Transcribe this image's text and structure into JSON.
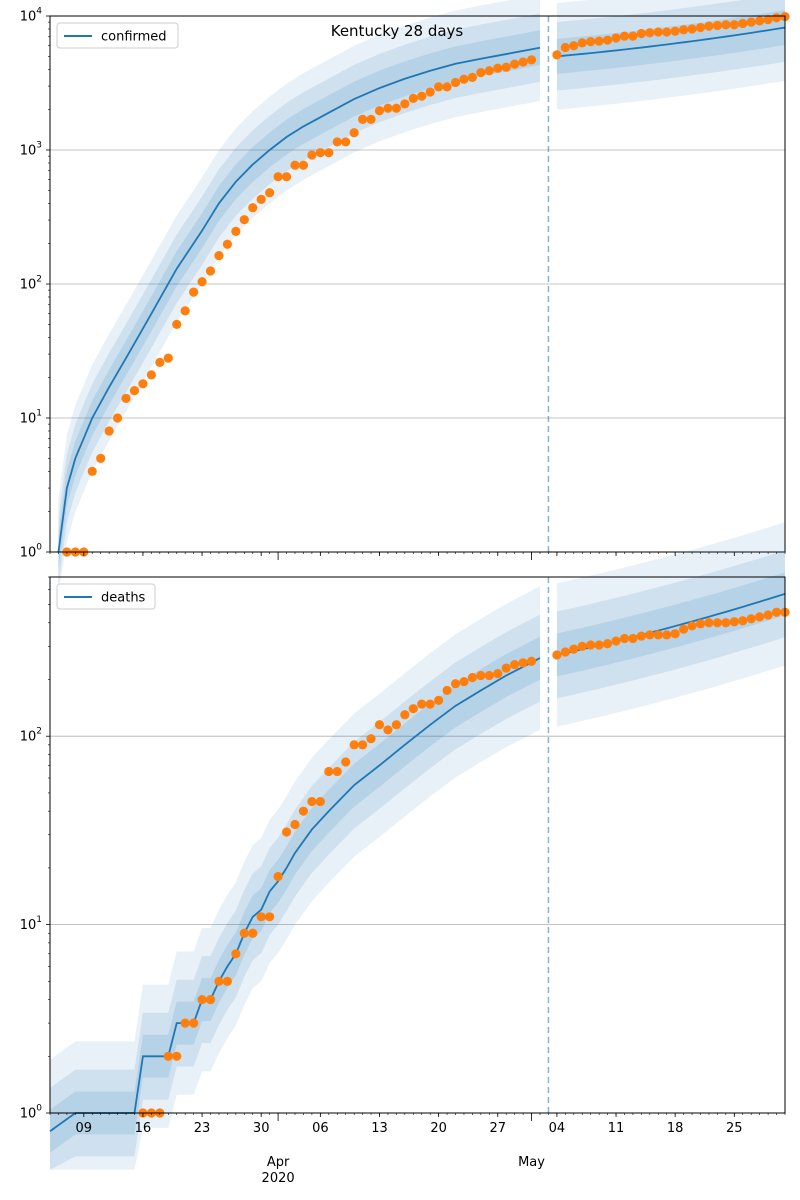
{
  "figure": {
    "title": "Kentucky 28 days",
    "colors": {
      "line": "#1f77b4",
      "points": "#ff7f0e",
      "band": "#1f77b4",
      "grid": "#b0b0b0"
    },
    "xaxis": {
      "start": "2020-03-05",
      "end": "2020-05-31",
      "minor_tick_labels": [
        {
          "date": "2020-03-09",
          "label": "09"
        },
        {
          "date": "2020-03-16",
          "label": "16"
        },
        {
          "date": "2020-03-23",
          "label": "23"
        },
        {
          "date": "2020-03-30",
          "label": "30"
        },
        {
          "date": "2020-04-06",
          "label": "06"
        },
        {
          "date": "2020-04-13",
          "label": "13"
        },
        {
          "date": "2020-04-20",
          "label": "20"
        },
        {
          "date": "2020-04-27",
          "label": "27"
        },
        {
          "date": "2020-05-04",
          "label": "04"
        },
        {
          "date": "2020-05-11",
          "label": "11"
        },
        {
          "date": "2020-05-18",
          "label": "18"
        },
        {
          "date": "2020-05-25",
          "label": "25"
        }
      ],
      "major_tick_labels": [
        {
          "date": "2020-04-01",
          "label": "Apr",
          "sublabel": "2020"
        },
        {
          "date": "2020-05-01",
          "label": "May",
          "sublabel": ""
        }
      ]
    },
    "forecast_start": "2020-05-03"
  },
  "chart_data": [
    {
      "type": "line",
      "legend": "confirmed",
      "legend_position": "top-left",
      "yscale": "log",
      "ylim": [
        1,
        10000
      ],
      "yticks": [
        {
          "value": 1,
          "base": "10",
          "exp": "0"
        },
        {
          "value": 10,
          "base": "10",
          "exp": "1"
        },
        {
          "value": 100,
          "base": "10",
          "exp": "2"
        },
        {
          "value": 1000,
          "base": "10",
          "exp": "3"
        },
        {
          "value": 10000,
          "base": "10",
          "exp": "4"
        }
      ],
      "grid": true,
      "x": [
        "2020-03-06",
        "2020-03-07",
        "2020-03-08",
        "2020-03-10",
        "2020-03-12",
        "2020-03-14",
        "2020-03-17",
        "2020-03-20",
        "2020-03-23",
        "2020-03-25",
        "2020-03-27",
        "2020-03-29",
        "2020-03-31",
        "2020-04-02",
        "2020-04-04",
        "2020-04-07",
        "2020-04-10",
        "2020-04-13",
        "2020-04-16",
        "2020-04-19",
        "2020-04-22",
        "2020-04-25",
        "2020-04-28",
        "2020-05-02"
      ],
      "model": [
        1,
        3,
        5,
        10,
        17,
        28,
        60,
        130,
        250,
        400,
        580,
        780,
        1000,
        1250,
        1500,
        1900,
        2400,
        2900,
        3400,
        3900,
        4400,
        4800,
        5200,
        5800
      ],
      "model_forecast": {
        "x": [
          "2020-05-04",
          "2020-05-31"
        ],
        "values": [
          5000,
          8200
        ]
      },
      "band_multipliers": [
        2.5,
        1.8,
        1.35
      ],
      "observed": {
        "x": [
          "2020-03-07",
          "2020-03-08",
          "2020-03-09",
          "2020-03-10",
          "2020-03-11",
          "2020-03-12",
          "2020-03-13",
          "2020-03-14",
          "2020-03-15",
          "2020-03-16",
          "2020-03-17",
          "2020-03-18",
          "2020-03-19",
          "2020-03-20",
          "2020-03-21",
          "2020-03-22",
          "2020-03-23",
          "2020-03-24",
          "2020-03-25",
          "2020-03-26",
          "2020-03-27",
          "2020-03-28",
          "2020-03-29",
          "2020-03-30",
          "2020-03-31",
          "2020-04-01",
          "2020-04-02",
          "2020-04-03",
          "2020-04-04",
          "2020-04-05",
          "2020-04-06",
          "2020-04-07",
          "2020-04-08",
          "2020-04-09",
          "2020-04-10",
          "2020-04-11",
          "2020-04-12",
          "2020-04-13",
          "2020-04-14",
          "2020-04-15",
          "2020-04-16",
          "2020-04-17",
          "2020-04-18",
          "2020-04-19",
          "2020-04-20",
          "2020-04-21",
          "2020-04-22",
          "2020-04-23",
          "2020-04-24",
          "2020-04-25",
          "2020-04-26",
          "2020-04-27",
          "2020-04-28",
          "2020-04-29",
          "2020-04-30",
          "2020-05-01",
          "2020-05-04",
          "2020-05-05",
          "2020-05-06",
          "2020-05-07",
          "2020-05-08",
          "2020-05-09",
          "2020-05-10",
          "2020-05-11",
          "2020-05-12",
          "2020-05-13",
          "2020-05-14",
          "2020-05-15",
          "2020-05-16",
          "2020-05-17",
          "2020-05-18",
          "2020-05-19",
          "2020-05-20",
          "2020-05-21",
          "2020-05-22",
          "2020-05-23",
          "2020-05-24",
          "2020-05-25",
          "2020-05-26",
          "2020-05-27",
          "2020-05-28",
          "2020-05-29",
          "2020-05-30",
          "2020-05-31"
        ],
        "values": [
          1,
          1,
          1,
          4,
          5,
          8,
          10,
          14,
          16,
          18,
          21,
          26,
          28,
          50,
          63,
          87,
          104,
          125,
          163,
          198,
          247,
          302,
          371,
          428,
          480,
          632,
          632,
          770,
          770,
          917,
          955,
          955,
          1149,
          1149,
          1346,
          1693,
          1693,
          1963,
          2048,
          2048,
          2210,
          2429,
          2522,
          2707,
          2960,
          2960,
          3192,
          3373,
          3481,
          3779,
          3905,
          4074,
          4146,
          4375,
          4539,
          4708,
          5130,
          5822,
          6000,
          6300,
          6440,
          6500,
          6600,
          6850,
          7080,
          7080,
          7400,
          7500,
          7600,
          7600,
          7700,
          7900,
          8000,
          8200,
          8400,
          8500,
          8600,
          8600,
          8800,
          9000,
          9200,
          9400,
          9700,
          9900
        ]
      }
    },
    {
      "type": "line",
      "legend": "deaths",
      "legend_position": "top-left",
      "yscale": "log",
      "ylim": [
        1,
        700
      ],
      "yticks": [
        {
          "value": 1,
          "base": "10",
          "exp": "0"
        },
        {
          "value": 10,
          "base": "10",
          "exp": "1"
        },
        {
          "value": 100,
          "base": "10",
          "exp": "2"
        }
      ],
      "grid": true,
      "x": [
        "2020-03-05",
        "2020-03-08",
        "2020-03-15",
        "2020-03-16",
        "2020-03-18",
        "2020-03-19",
        "2020-03-20",
        "2020-03-22",
        "2020-03-23",
        "2020-03-24",
        "2020-03-25",
        "2020-03-26",
        "2020-03-27",
        "2020-03-28",
        "2020-03-29",
        "2020-03-30",
        "2020-03-31",
        "2020-04-01",
        "2020-04-02",
        "2020-04-03",
        "2020-04-05",
        "2020-04-07",
        "2020-04-10",
        "2020-04-13",
        "2020-04-16",
        "2020-04-19",
        "2020-04-22",
        "2020-04-25",
        "2020-04-28",
        "2020-05-02"
      ],
      "model": [
        0.8,
        1,
        1,
        2,
        2,
        2,
        3,
        3,
        4,
        4,
        5,
        6,
        7,
        9,
        11,
        12,
        15,
        17,
        20,
        24,
        32,
        40,
        55,
        70,
        90,
        115,
        145,
        175,
        210,
        260
      ],
      "model_forecast": {
        "x": [
          "2020-05-04",
          "2020-05-31"
        ],
        "values": [
          270,
          570
        ]
      },
      "band_multipliers": [
        2.4,
        1.7,
        1.3
      ],
      "observed": {
        "x": [
          "2020-03-16",
          "2020-03-17",
          "2020-03-18",
          "2020-03-19",
          "2020-03-20",
          "2020-03-21",
          "2020-03-22",
          "2020-03-23",
          "2020-03-24",
          "2020-03-25",
          "2020-03-26",
          "2020-03-27",
          "2020-03-28",
          "2020-03-29",
          "2020-03-30",
          "2020-03-31",
          "2020-04-01",
          "2020-04-02",
          "2020-04-03",
          "2020-04-04",
          "2020-04-05",
          "2020-04-06",
          "2020-04-07",
          "2020-04-08",
          "2020-04-09",
          "2020-04-10",
          "2020-04-11",
          "2020-04-12",
          "2020-04-13",
          "2020-04-14",
          "2020-04-15",
          "2020-04-16",
          "2020-04-17",
          "2020-04-18",
          "2020-04-19",
          "2020-04-20",
          "2020-04-21",
          "2020-04-22",
          "2020-04-23",
          "2020-04-24",
          "2020-04-25",
          "2020-04-26",
          "2020-04-27",
          "2020-04-28",
          "2020-04-29",
          "2020-04-30",
          "2020-05-01",
          "2020-05-04",
          "2020-05-05",
          "2020-05-06",
          "2020-05-07",
          "2020-05-08",
          "2020-05-09",
          "2020-05-10",
          "2020-05-11",
          "2020-05-12",
          "2020-05-13",
          "2020-05-14",
          "2020-05-15",
          "2020-05-16",
          "2020-05-17",
          "2020-05-18",
          "2020-05-19",
          "2020-05-20",
          "2020-05-21",
          "2020-05-22",
          "2020-05-23",
          "2020-05-24",
          "2020-05-25",
          "2020-05-26",
          "2020-05-27",
          "2020-05-28",
          "2020-05-29",
          "2020-05-30",
          "2020-05-31"
        ],
        "values": [
          1,
          1,
          1,
          2,
          2,
          3,
          3,
          4,
          4,
          5,
          5,
          7,
          9,
          9,
          11,
          11,
          18,
          31,
          34,
          40,
          45,
          45,
          65,
          65,
          73,
          90,
          90,
          97,
          115,
          108,
          115,
          130,
          140,
          148,
          148,
          155,
          175,
          190,
          195,
          205,
          210,
          210,
          215,
          230,
          240,
          245,
          250,
          270,
          280,
          290,
          300,
          305,
          305,
          310,
          320,
          330,
          330,
          340,
          345,
          345,
          345,
          350,
          370,
          385,
          395,
          400,
          400,
          400,
          405,
          410,
          420,
          430,
          440,
          455,
          455
        ]
      }
    }
  ]
}
